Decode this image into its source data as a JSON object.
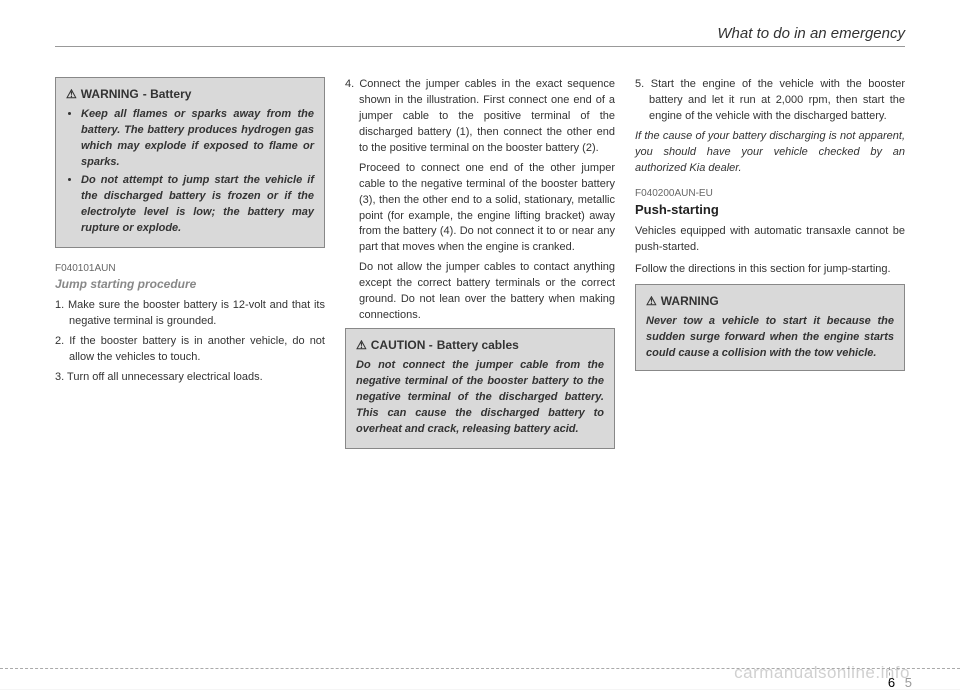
{
  "header": {
    "title": "What to do in an emergency"
  },
  "col1": {
    "warning_box": {
      "icon": "⚠",
      "label": "WARNING",
      "sublabel": "- Battery",
      "items": [
        "Keep all flames or sparks away from the battery. The battery produces hydrogen gas which may explode if exposed to flame or sparks.",
        "Do not attempt to jump start the vehicle if the discharged battery is frozen or if the electrolyte level is low; the battery may rupture or explode."
      ]
    },
    "code": "F040101AUN",
    "subheading": "Jump starting procedure",
    "steps": [
      "1. Make sure the booster battery is 12-volt and that its negative terminal is grounded.",
      "2. If the booster battery is in another vehicle, do not allow the vehicles to touch.",
      "3. Turn off all unnecessary electrical loads."
    ]
  },
  "col2": {
    "step4": "4. Connect the jumper cables in the exact sequence shown in the illustration. First connect one end of a jumper cable to the positive terminal of the discharged battery (1), then connect the other end to the positive terminal on the booster battery (2).",
    "step4b": "Proceed to connect one end of the other jumper cable to the negative terminal of the booster battery (3), then the other end to a solid, stationary, metallic point (for example, the engine lifting bracket) away from the battery (4). Do not connect it to or near any part that moves when the engine is cranked.",
    "step4c": "Do not allow the jumper cables to contact anything except the correct battery terminals or the correct ground. Do not lean over the battery when making connections.",
    "caution_box": {
      "icon": "⚠",
      "label": "CAUTION -",
      "sublabel": "Battery cables",
      "body": "Do not connect the jumper cable from the negative terminal of the booster battery to the negative terminal of the discharged battery. This can cause the discharged battery to overheat and crack, releasing battery acid."
    }
  },
  "col3": {
    "step5": "5. Start the engine of the vehicle with the booster battery and let it run at 2,000 rpm, then start the engine of the vehicle with the discharged battery.",
    "note": "If the cause of your battery discharging is not apparent, you should have your vehicle checked by an authorized Kia dealer.",
    "code": "F040200AUN-EU",
    "heading": "Push-starting",
    "p1": "Vehicles equipped with automatic transaxle cannot be push-started.",
    "p2": "Follow the directions in this section for jump-starting.",
    "warning_box": {
      "icon": "⚠",
      "label": "WARNING",
      "body": "Never tow a vehicle to start it because the sudden surge forward when the engine starts could cause a collision with the tow vehicle."
    }
  },
  "footer": {
    "page_left": "6",
    "page_right": "5",
    "watermark": "carmanualsonline.info"
  }
}
